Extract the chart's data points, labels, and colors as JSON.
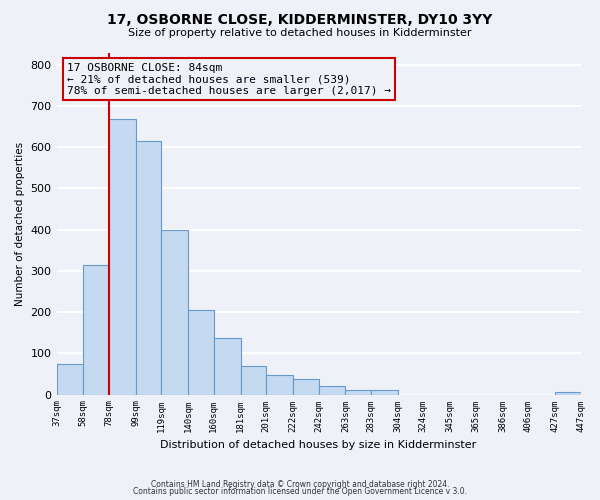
{
  "title": "17, OSBORNE CLOSE, KIDDERMINSTER, DY10 3YY",
  "subtitle": "Size of property relative to detached houses in Kidderminster",
  "xlabel": "Distribution of detached houses by size in Kidderminster",
  "ylabel": "Number of detached properties",
  "bin_labels": [
    "37sqm",
    "58sqm",
    "78sqm",
    "99sqm",
    "119sqm",
    "140sqm",
    "160sqm",
    "181sqm",
    "201sqm",
    "222sqm",
    "242sqm",
    "263sqm",
    "283sqm",
    "304sqm",
    "324sqm",
    "345sqm",
    "365sqm",
    "386sqm",
    "406sqm",
    "427sqm",
    "447sqm"
  ],
  "bar_values": [
    75,
    315,
    668,
    615,
    400,
    205,
    137,
    70,
    48,
    37,
    20,
    12,
    12,
    0,
    0,
    0,
    0,
    0,
    0,
    5,
    0
  ],
  "bar_color": "#c5d9f0",
  "bar_edge_color": "#6699cc",
  "vline_x": 78,
  "vline_color": "#cc0000",
  "annotation_title": "17 OSBORNE CLOSE: 84sqm",
  "annotation_line1": "← 21% of detached houses are smaller (539)",
  "annotation_line2": "78% of semi-detached houses are larger (2,017) →",
  "annotation_box_color": "#cc0000",
  "footnote1": "Contains HM Land Registry data © Crown copyright and database right 2024.",
  "footnote2": "Contains public sector information licensed under the Open Government Licence v 3.0.",
  "ylim": [
    0,
    830
  ],
  "bin_edges": [
    37,
    58,
    78,
    99,
    119,
    140,
    160,
    181,
    201,
    222,
    242,
    263,
    283,
    304,
    324,
    345,
    365,
    386,
    406,
    427,
    447
  ],
  "bg_color": "#eef2f8",
  "grid_color": "#ffffff",
  "title_fontsize": 10,
  "subtitle_fontsize": 8
}
